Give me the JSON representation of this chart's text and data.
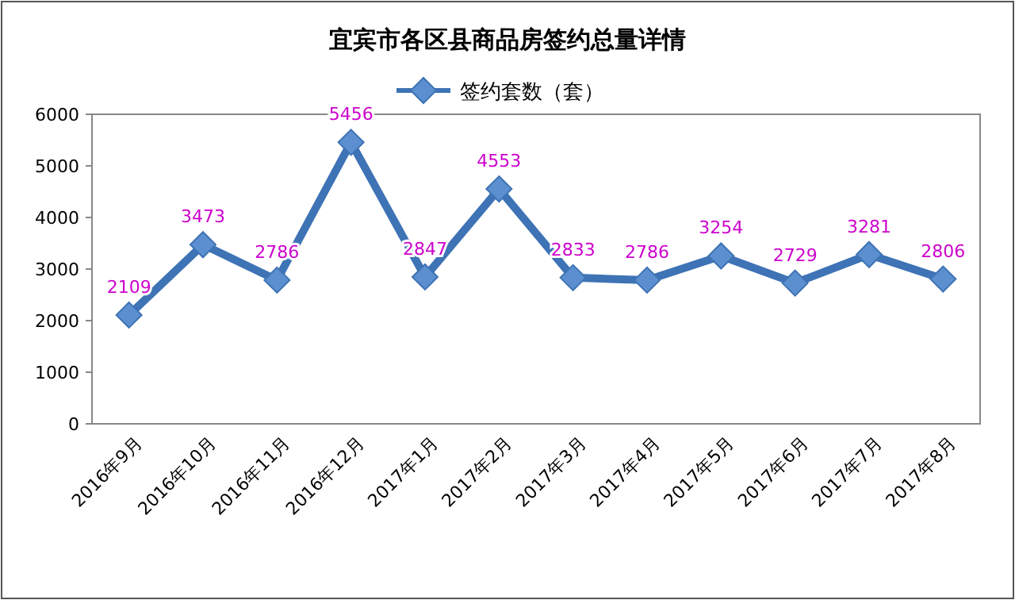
{
  "chart_data": {
    "type": "line",
    "title": "宜宾市各区县商品房签约总量详情",
    "categories": [
      "2016年9月",
      "2016年10月",
      "2016年11月",
      "2016年12月",
      "2017年1月",
      "2017年2月",
      "2017年3月",
      "2017年4月",
      "2017年5月",
      "2017年6月",
      "2017年7月",
      "2017年8月"
    ],
    "series": [
      {
        "name": "签约套数（套）",
        "color": "#3e73b5",
        "values": [
          2109,
          3473,
          2786,
          5456,
          2847,
          4553,
          2833,
          2786,
          3254,
          2729,
          3281,
          2806
        ]
      }
    ],
    "ylim": [
      0,
      6000
    ],
    "yticks": [
      0,
      1000,
      2000,
      3000,
      4000,
      5000,
      6000
    ],
    "grid": false,
    "legend": "top",
    "marker": "diamond",
    "line_style": "solid",
    "data_labels": true
  }
}
